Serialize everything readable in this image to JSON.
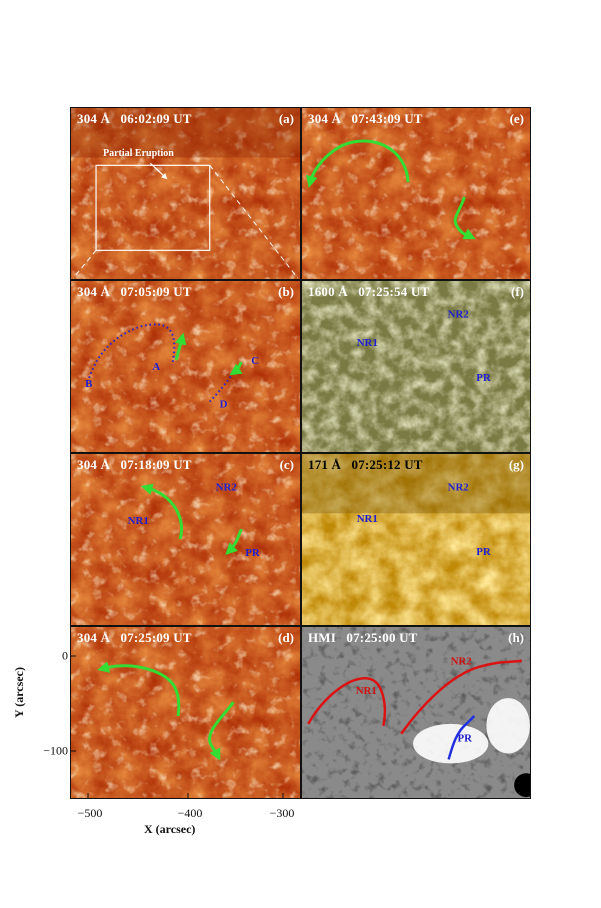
{
  "panels": {
    "a": {
      "title": "304 Å   06:02:09 UT",
      "label": "(a)",
      "annotation": "Partial Eruption"
    },
    "b": {
      "title": "304 Å   07:05:09 UT",
      "label": "(b)",
      "markers": [
        "A",
        "B",
        "C",
        "D"
      ]
    },
    "c": {
      "title": "304 Å   07:18:09 UT",
      "label": "(c)",
      "regions": [
        "NR1",
        "NR2",
        "PR"
      ]
    },
    "d": {
      "title": "304 Å   07:25:09 UT",
      "label": "(d)"
    },
    "e": {
      "title": "304 Å   07:43:09 UT",
      "label": "(e)"
    },
    "f": {
      "title": "1600 Å   07:25:54 UT",
      "label": "(f)",
      "regions": [
        "NR1",
        "NR2",
        "PR"
      ]
    },
    "g": {
      "title": "171 Å   07:25:12 UT",
      "label": "(g)",
      "regions": [
        "NR1",
        "NR2",
        "PR"
      ]
    },
    "h": {
      "title": "HMI   07:25:00 UT",
      "label": "(h)",
      "regions": [
        "NR1",
        "NR2",
        "PR"
      ]
    }
  },
  "axes": {
    "xlabel": "X (arcsec)",
    "ylabel": "Y (arcsec)",
    "xticks": [
      "−500",
      "−400",
      "−300"
    ],
    "yticks": [
      "0",
      "−100"
    ]
  },
  "colors": {
    "aia304": "#c8400c",
    "aia1600": "#8a8a52",
    "aia171": "#d8a010",
    "arrow": "#33dd33"
  }
}
